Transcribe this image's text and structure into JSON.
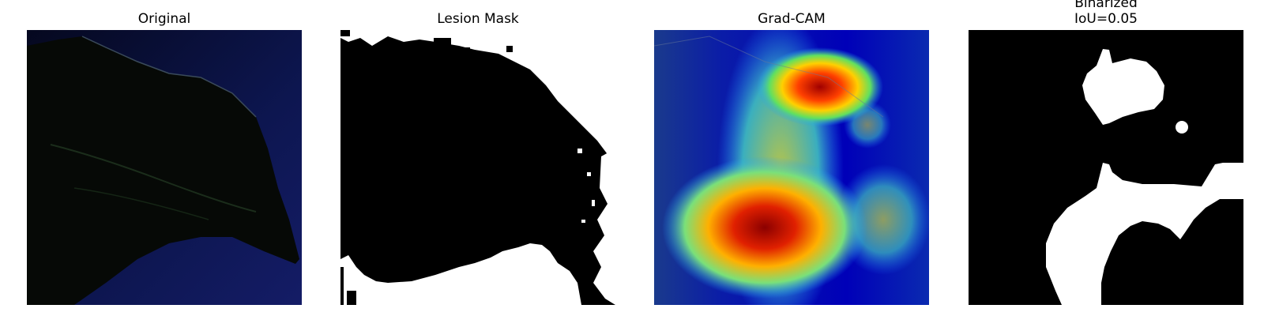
{
  "figure": {
    "panels": [
      {
        "id": "original",
        "title": "Original"
      },
      {
        "id": "lesion-mask",
        "title": "Lesion Mask"
      },
      {
        "id": "grad-cam",
        "title": "Grad-CAM"
      },
      {
        "id": "binarized",
        "title": "Binarized",
        "subtitle": "IoU=0.05"
      }
    ]
  },
  "colors": {
    "background": "#ffffff",
    "original_bg": "#0a0f3a",
    "leaf": "#050806",
    "mask_fg": "#ffffff",
    "mask_bg": "#000000",
    "cam_low": "#0000b0",
    "cam_high": "#8b0000"
  }
}
